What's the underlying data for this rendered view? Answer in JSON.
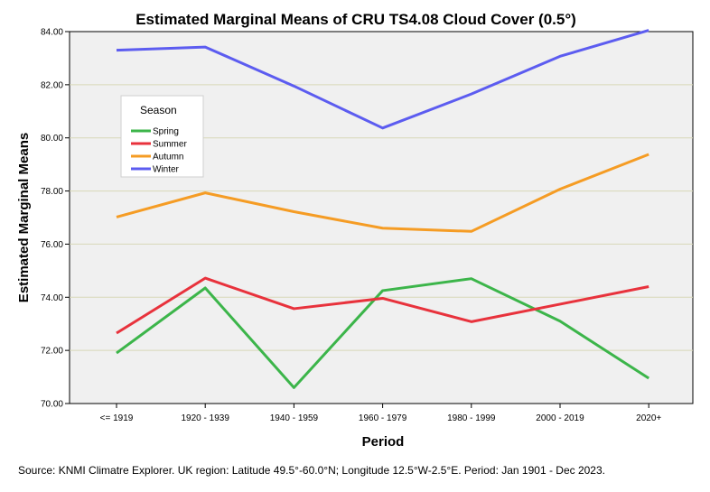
{
  "chart_data": {
    "type": "line",
    "title": "Estimated Marginal Means of CRU TS4.08 Cloud Cover (0.5°)",
    "xlabel": "Period",
    "ylabel": "Estimated Marginal Means",
    "categories": [
      "<= 1919",
      "1920 - 1939",
      "1940 - 1959",
      "1960 - 1979",
      "1980 - 1999",
      "2000 - 2019",
      "2020+"
    ],
    "ylim": [
      70,
      84
    ],
    "yticks": [
      "70.00",
      "72.00",
      "74.00",
      "76.00",
      "78.00",
      "80.00",
      "82.00",
      "84.00"
    ],
    "ytick_values": [
      70,
      72,
      74,
      76,
      78,
      80,
      82,
      84
    ],
    "grid": true,
    "legend_title": "Season",
    "legend_position": "upper-left",
    "series": [
      {
        "name": "Spring",
        "color": "#3cb54a",
        "values": [
          71.9,
          74.35,
          70.6,
          74.25,
          74.7,
          73.1,
          70.95
        ]
      },
      {
        "name": "Summer",
        "color": "#e8323c",
        "values": [
          72.65,
          74.72,
          73.57,
          73.96,
          73.08,
          73.74,
          74.4
        ]
      },
      {
        "name": "Autumn",
        "color": "#f59c24",
        "values": [
          77.02,
          77.93,
          77.22,
          76.6,
          76.48,
          78.07,
          79.38
        ]
      },
      {
        "name": "Winter",
        "color": "#5c5cf0",
        "values": [
          83.3,
          83.42,
          81.95,
          80.37,
          81.65,
          83.07,
          84.05
        ]
      }
    ]
  },
  "source_note": "Source: KNMI Climatre Explorer. UK region: Latitude 49.5°-60.0°N; Longitude 12.5°W-2.5°E. Period: Jan 1901 - Dec 2023."
}
